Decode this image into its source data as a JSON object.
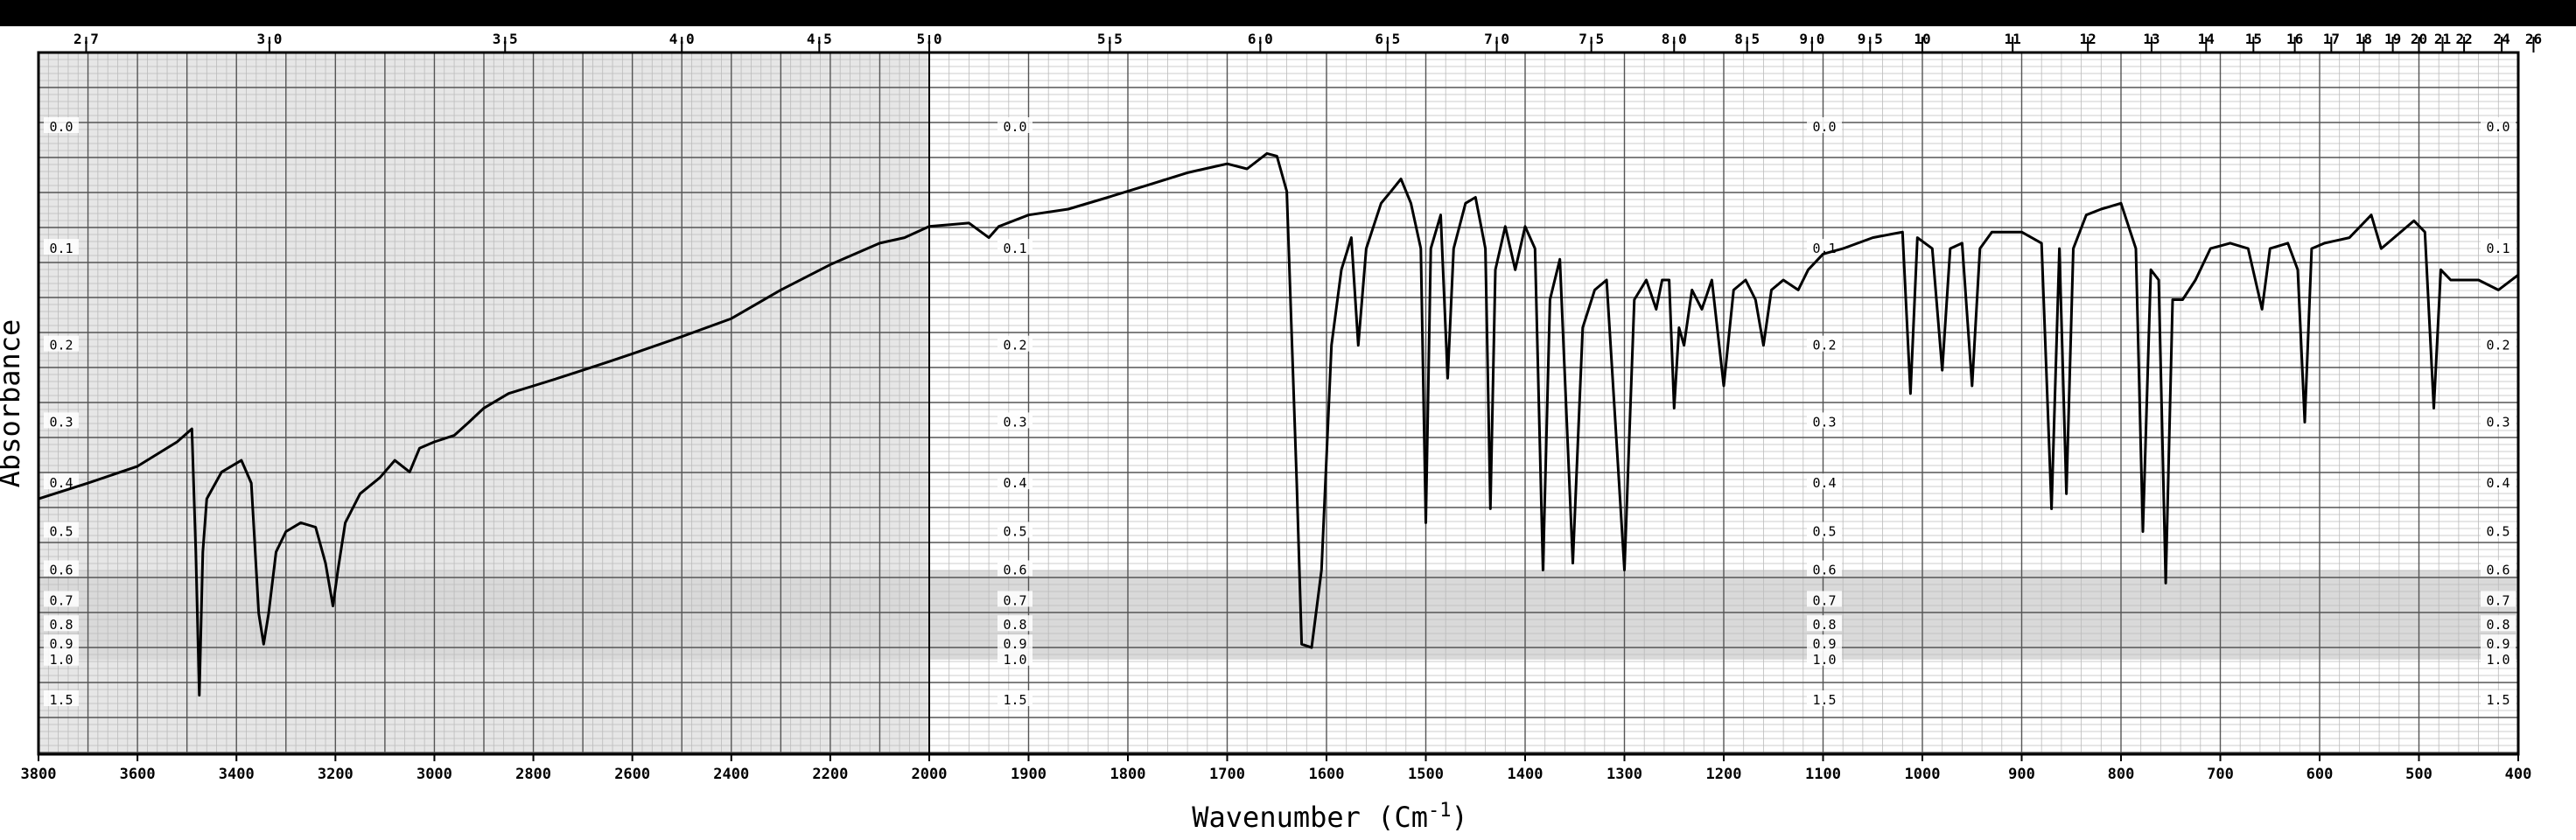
{
  "chart_data": {
    "type": "line",
    "xlabel": "Wavenumber (Cm",
    "xlabel_sup": "-1",
    "xlabel_close": ")",
    "ylabel": "Absorbance",
    "x_axis": {
      "segments": [
        {
          "from": 3800,
          "to": 2000
        },
        {
          "from": 2000,
          "to": 400
        }
      ],
      "ticks": [
        {
          "value": 3800,
          "label": "3800"
        },
        {
          "value": 3600,
          "label": "3600"
        },
        {
          "value": 3400,
          "label": "3400"
        },
        {
          "value": 3200,
          "label": "3200"
        },
        {
          "value": 3000,
          "label": "3000"
        },
        {
          "value": 2800,
          "label": "2800"
        },
        {
          "value": 2600,
          "label": "2600"
        },
        {
          "value": 2400,
          "label": "2400"
        },
        {
          "value": 2200,
          "label": "2200"
        },
        {
          "value": 2000,
          "label": "2000"
        },
        {
          "value": 1900,
          "label": "1900"
        },
        {
          "value": 1800,
          "label": "1800"
        },
        {
          "value": 1700,
          "label": "1700"
        },
        {
          "value": 1600,
          "label": "1600"
        },
        {
          "value": 1500,
          "label": "1500"
        },
        {
          "value": 1400,
          "label": "1400"
        },
        {
          "value": 1300,
          "label": "1300"
        },
        {
          "value": 1200,
          "label": "1200"
        },
        {
          "value": 1100,
          "label": "1100"
        },
        {
          "value": 1000,
          "label": "1000"
        },
        {
          "value": 900,
          "label": "900"
        },
        {
          "value": 800,
          "label": "800"
        },
        {
          "value": 700,
          "label": "700"
        },
        {
          "value": 600,
          "label": "600"
        },
        {
          "value": 500,
          "label": "500"
        },
        {
          "value": 400,
          "label": "400"
        }
      ]
    },
    "micron_axis": {
      "ticks": [
        {
          "value": 2.7,
          "label": "2.7"
        },
        {
          "value": 3.0,
          "label": "3.0"
        },
        {
          "value": 3.5,
          "label": "3.5"
        },
        {
          "value": 4.0,
          "label": "4.0"
        },
        {
          "value": 4.5,
          "label": "4.5"
        },
        {
          "value": 5.0,
          "label": "5.0"
        },
        {
          "value": 5.5,
          "label": "5.5"
        },
        {
          "value": 6.0,
          "label": "6.0"
        },
        {
          "value": 6.5,
          "label": "6.5"
        },
        {
          "value": 7.0,
          "label": "7.0"
        },
        {
          "value": 7.5,
          "label": "7.5"
        },
        {
          "value": 8.0,
          "label": "8.0"
        },
        {
          "value": 8.5,
          "label": "8.5"
        },
        {
          "value": 9.0,
          "label": "9.0"
        },
        {
          "value": 9.5,
          "label": "9.5"
        },
        {
          "value": 10,
          "label": "10"
        },
        {
          "value": 11,
          "label": "11"
        },
        {
          "value": 12,
          "label": "12"
        },
        {
          "value": 13,
          "label": "13"
        },
        {
          "value": 14,
          "label": "14"
        },
        {
          "value": 15,
          "label": "15"
        },
        {
          "value": 16,
          "label": "16"
        },
        {
          "value": 17,
          "label": "17"
        },
        {
          "value": 18,
          "label": "18"
        },
        {
          "value": 19,
          "label": "19"
        },
        {
          "value": 20,
          "label": "20"
        },
        {
          "value": 21,
          "label": "21"
        },
        {
          "value": 22,
          "label": "22"
        },
        {
          "value": 24,
          "label": "24"
        },
        {
          "value": 26,
          "label": "26"
        }
      ]
    },
    "y_axis": {
      "scale": "transmittance-linear (absorbance labels)",
      "ticks": [
        {
          "value": 0.0,
          "label": "0.0"
        },
        {
          "value": 0.1,
          "label": "0.1"
        },
        {
          "value": 0.2,
          "label": "0.2"
        },
        {
          "value": 0.3,
          "label": "0.3"
        },
        {
          "value": 0.4,
          "label": "0.4"
        },
        {
          "value": 0.5,
          "label": "0.5"
        },
        {
          "value": 0.6,
          "label": "0.6"
        },
        {
          "value": 0.7,
          "label": "0.7"
        },
        {
          "value": 0.8,
          "label": "0.8"
        },
        {
          "value": 0.9,
          "label": "0.9"
        },
        {
          "value": 1.0,
          "label": "1.0"
        },
        {
          "value": 1.5,
          "label": "1.5"
        }
      ]
    },
    "grid": true,
    "series": [
      {
        "points": [
          [
            3800,
            0.43
          ],
          [
            3700,
            0.4
          ],
          [
            3600,
            0.37
          ],
          [
            3520,
            0.33
          ],
          [
            3490,
            0.31
          ],
          [
            3482,
            0.55
          ],
          [
            3475,
            1.4
          ],
          [
            3468,
            0.55
          ],
          [
            3460,
            0.43
          ],
          [
            3430,
            0.38
          ],
          [
            3390,
            0.36
          ],
          [
            3370,
            0.4
          ],
          [
            3355,
            0.75
          ],
          [
            3345,
            0.9
          ],
          [
            3335,
            0.75
          ],
          [
            3320,
            0.55
          ],
          [
            3300,
            0.5
          ],
          [
            3270,
            0.48
          ],
          [
            3240,
            0.49
          ],
          [
            3220,
            0.58
          ],
          [
            3205,
            0.72
          ],
          [
            3195,
            0.6
          ],
          [
            3180,
            0.48
          ],
          [
            3150,
            0.42
          ],
          [
            3110,
            0.39
          ],
          [
            3080,
            0.36
          ],
          [
            3050,
            0.38
          ],
          [
            3030,
            0.34
          ],
          [
            3000,
            0.33
          ],
          [
            2960,
            0.32
          ],
          [
            2930,
            0.3
          ],
          [
            2900,
            0.28
          ],
          [
            2850,
            0.26
          ],
          [
            2800,
            0.25
          ],
          [
            2750,
            0.24
          ],
          [
            2700,
            0.23
          ],
          [
            2650,
            0.22
          ],
          [
            2600,
            0.21
          ],
          [
            2500,
            0.19
          ],
          [
            2400,
            0.17
          ],
          [
            2300,
            0.14
          ],
          [
            2200,
            0.115
          ],
          [
            2100,
            0.095
          ],
          [
            2050,
            0.09
          ],
          [
            2000,
            0.08
          ],
          [
            1960,
            0.077
          ],
          [
            1940,
            0.09
          ],
          [
            1930,
            0.08
          ],
          [
            1900,
            0.07
          ],
          [
            1860,
            0.065
          ],
          [
            1820,
            0.055
          ],
          [
            1780,
            0.045
          ],
          [
            1740,
            0.035
          ],
          [
            1700,
            0.028
          ],
          [
            1680,
            0.032
          ],
          [
            1660,
            0.02
          ],
          [
            1650,
            0.022
          ],
          [
            1640,
            0.05
          ],
          [
            1630,
            0.4
          ],
          [
            1625,
            0.9
          ],
          [
            1615,
            0.92
          ],
          [
            1605,
            0.6
          ],
          [
            1595,
            0.2
          ],
          [
            1585,
            0.12
          ],
          [
            1575,
            0.09
          ],
          [
            1568,
            0.2
          ],
          [
            1560,
            0.1
          ],
          [
            1545,
            0.06
          ],
          [
            1535,
            0.05
          ],
          [
            1525,
            0.04
          ],
          [
            1515,
            0.06
          ],
          [
            1505,
            0.1
          ],
          [
            1500,
            0.48
          ],
          [
            1495,
            0.1
          ],
          [
            1485,
            0.07
          ],
          [
            1478,
            0.24
          ],
          [
            1472,
            0.1
          ],
          [
            1460,
            0.06
          ],
          [
            1450,
            0.055
          ],
          [
            1440,
            0.1
          ],
          [
            1435,
            0.45
          ],
          [
            1430,
            0.12
          ],
          [
            1420,
            0.08
          ],
          [
            1410,
            0.12
          ],
          [
            1400,
            0.08
          ],
          [
            1390,
            0.1
          ],
          [
            1382,
            0.6
          ],
          [
            1375,
            0.15
          ],
          [
            1365,
            0.11
          ],
          [
            1352,
            0.58
          ],
          [
            1342,
            0.18
          ],
          [
            1330,
            0.14
          ],
          [
            1318,
            0.13
          ],
          [
            1300,
            0.6
          ],
          [
            1290,
            0.15
          ],
          [
            1278,
            0.13
          ],
          [
            1268,
            0.16
          ],
          [
            1262,
            0.13
          ],
          [
            1255,
            0.13
          ],
          [
            1250,
            0.28
          ],
          [
            1245,
            0.18
          ],
          [
            1240,
            0.2
          ],
          [
            1232,
            0.14
          ],
          [
            1222,
            0.16
          ],
          [
            1212,
            0.13
          ],
          [
            1200,
            0.25
          ],
          [
            1190,
            0.14
          ],
          [
            1178,
            0.13
          ],
          [
            1168,
            0.15
          ],
          [
            1160,
            0.2
          ],
          [
            1152,
            0.14
          ],
          [
            1140,
            0.13
          ],
          [
            1125,
            0.14
          ],
          [
            1115,
            0.12
          ],
          [
            1100,
            0.105
          ],
          [
            1080,
            0.1
          ],
          [
            1050,
            0.09
          ],
          [
            1020,
            0.085
          ],
          [
            1012,
            0.26
          ],
          [
            1005,
            0.09
          ],
          [
            990,
            0.1
          ],
          [
            980,
            0.23
          ],
          [
            972,
            0.1
          ],
          [
            960,
            0.095
          ],
          [
            950,
            0.25
          ],
          [
            942,
            0.1
          ],
          [
            930,
            0.085
          ],
          [
            915,
            0.085
          ],
          [
            900,
            0.085
          ],
          [
            880,
            0.095
          ],
          [
            870,
            0.45
          ],
          [
            862,
            0.1
          ],
          [
            855,
            0.42
          ],
          [
            848,
            0.1
          ],
          [
            835,
            0.07
          ],
          [
            820,
            0.065
          ],
          [
            800,
            0.06
          ],
          [
            785,
            0.1
          ],
          [
            778,
            0.5
          ],
          [
            770,
            0.12
          ],
          [
            762,
            0.13
          ],
          [
            755,
            0.64
          ],
          [
            748,
            0.15
          ],
          [
            738,
            0.15
          ],
          [
            725,
            0.13
          ],
          [
            710,
            0.1
          ],
          [
            690,
            0.095
          ],
          [
            672,
            0.1
          ],
          [
            658,
            0.16
          ],
          [
            650,
            0.1
          ],
          [
            632,
            0.095
          ],
          [
            622,
            0.12
          ],
          [
            615,
            0.3
          ],
          [
            608,
            0.1
          ],
          [
            595,
            0.095
          ],
          [
            570,
            0.09
          ],
          [
            548,
            0.07
          ],
          [
            538,
            0.1
          ],
          [
            525,
            0.09
          ],
          [
            505,
            0.075
          ],
          [
            494,
            0.085
          ],
          [
            485,
            0.28
          ],
          [
            478,
            0.12
          ],
          [
            468,
            0.13
          ],
          [
            455,
            0.13
          ],
          [
            440,
            0.13
          ],
          [
            420,
            0.14
          ],
          [
            400,
            0.125
          ]
        ]
      }
    ]
  }
}
